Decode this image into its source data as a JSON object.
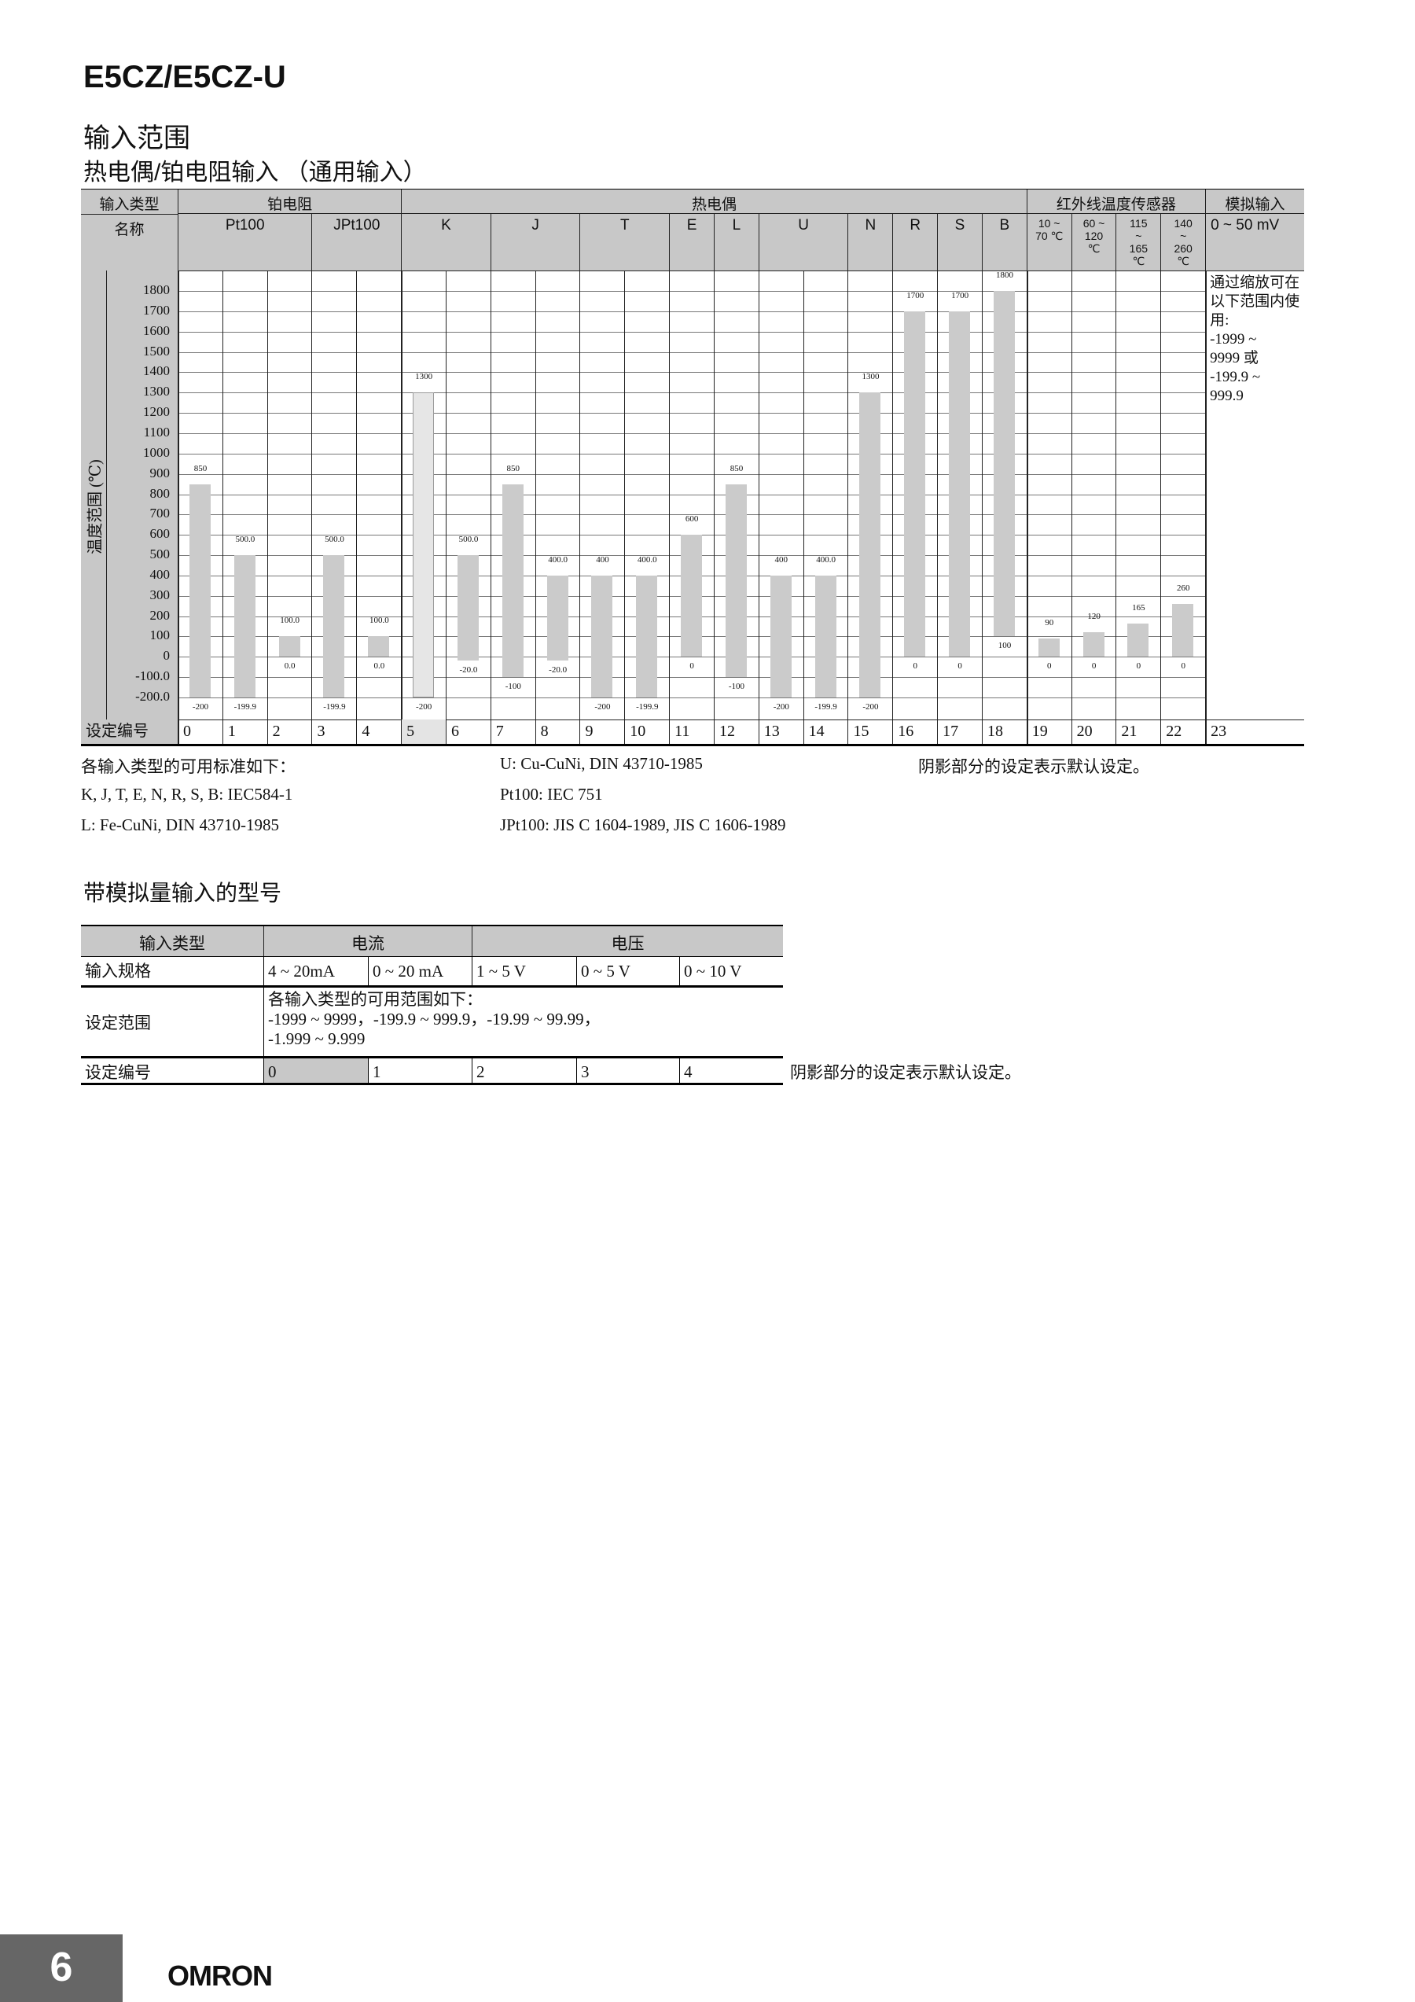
{
  "header": {
    "model": "E5CZ/E5CZ-U",
    "section": "输入范围",
    "subsection": "热电偶/铂电阻输入 （通用输入）"
  },
  "table1": {
    "row1_label": "输入类型",
    "row2_label": "名称",
    "groups": [
      "铂电阻",
      "热电偶",
      "红外线温度传感器",
      "模拟输入"
    ],
    "names": [
      "Pt100",
      "JPt100",
      "K",
      "J",
      "T",
      "E",
      "L",
      "U",
      "N",
      "R",
      "S",
      "B",
      "10 ~\n70 ℃",
      "60 ~\n120\n℃",
      "115\n~\n165\n℃",
      "140\n~\n260\n℃",
      "0 ~ 50 mV"
    ],
    "axis_label": "温度范围 (℃)",
    "setting_label": "设定编号",
    "analog_note": "通过缩放可在以下范围内使用:\n-1999 ~\n9999 或\n-199.9 ~\n999.9",
    "default_setting": 5,
    "shade_color": "#cbcbcb",
    "default_shade_color": "#e6e6e6"
  },
  "chart_data": {
    "type": "bar",
    "subtype": "floating-range",
    "ylabel": "温度范围 (℃)",
    "ylim": [
      -200,
      1800
    ],
    "yticks": [
      "1800",
      "1700",
      "1600",
      "1500",
      "1400",
      "1300",
      "1200",
      "1100",
      "1000",
      "900",
      "800",
      "700",
      "600",
      "500",
      "400",
      "300",
      "200",
      "100",
      "0",
      "-100.0",
      "-200.0"
    ],
    "grid": true,
    "categories": [
      "0",
      "1",
      "2",
      "3",
      "4",
      "5",
      "6",
      "7",
      "8",
      "9",
      "10",
      "11",
      "12",
      "13",
      "14",
      "15",
      "16",
      "17",
      "18",
      "19",
      "20",
      "21",
      "22",
      "23"
    ],
    "ranges": [
      {
        "max": 850,
        "min": -200,
        "max_label": "850",
        "min_label": "-200"
      },
      {
        "max": 500,
        "min": -199.9,
        "max_label": "500.0",
        "min_label": "-199.9"
      },
      {
        "max": 100,
        "min": 0,
        "max_label": "100.0",
        "min_label": "0.0"
      },
      {
        "max": 500,
        "min": -199.9,
        "max_label": "500.0",
        "min_label": "-199.9"
      },
      {
        "max": 100,
        "min": 0,
        "max_label": "100.0",
        "min_label": "0.0"
      },
      {
        "max": 1300,
        "min": -200,
        "max_label": "1300",
        "min_label": "-200"
      },
      {
        "max": 500,
        "min": -20,
        "max_label": "500.0",
        "min_label": "-20.0"
      },
      {
        "max": 850,
        "min": -100,
        "max_label": "850",
        "min_label": "-100"
      },
      {
        "max": 400,
        "min": -20,
        "max_label": "400.0",
        "min_label": "-20.0"
      },
      {
        "max": 400,
        "min": -200,
        "max_label": "400",
        "min_label": "-200"
      },
      {
        "max": 400,
        "min": -199.9,
        "max_label": "400.0",
        "min_label": "-199.9"
      },
      {
        "max": 600,
        "min": 0,
        "max_label": "600",
        "min_label": "0"
      },
      {
        "max": 850,
        "min": -100,
        "max_label": "850",
        "min_label": "-100"
      },
      {
        "max": 400,
        "min": -200,
        "max_label": "400",
        "min_label": "-200"
      },
      {
        "max": 400,
        "min": -199.9,
        "max_label": "400.0",
        "min_label": "-199.9"
      },
      {
        "max": 1300,
        "min": -200,
        "max_label": "1300",
        "min_label": "-200"
      },
      {
        "max": 1700,
        "min": 0,
        "max_label": "1700",
        "min_label": "0"
      },
      {
        "max": 1700,
        "min": 0,
        "max_label": "1700",
        "min_label": "0"
      },
      {
        "max": 1800,
        "min": 100,
        "max_label": "1800",
        "min_label": "100"
      },
      {
        "max": 90,
        "min": 0,
        "max_label": "90",
        "min_label": "0"
      },
      {
        "max": 120,
        "min": 0,
        "max_label": "120",
        "min_label": "0"
      },
      {
        "max": 165,
        "min": 0,
        "max_label": "165",
        "min_label": "0"
      },
      {
        "max": 260,
        "min": 0,
        "max_label": "260",
        "min_label": "0"
      }
    ]
  },
  "notes": {
    "standards_title": "各输入类型的可用标准如下：",
    "std1": "K, J, T, E, N, R, S, B: IEC584-1",
    "std2": "L: Fe-CuNi, DIN 43710-1985",
    "std3": "U: Cu-CuNi, DIN 43710-1985",
    "std4": "Pt100: IEC 751",
    "std5": "JPt100: JIS C 1604-1989, JIS C 1606-1989",
    "shade_note": "阴影部分的设定表示默认设定。"
  },
  "analog": {
    "heading": "带模拟量输入的型号",
    "type_label": "输入类型",
    "current": "电流",
    "voltage": "电压",
    "spec_label": "输入规格",
    "specs": [
      "4 ~ 20mA",
      "0 ~ 20 mA",
      "1 ~ 5 V",
      "0 ~ 5 V",
      "0 ~ 10 V"
    ],
    "range_label": "设定范围",
    "range_text": "各输入类型的可用范围如下：\n-1999 ~ 9999，-199.9 ~ 999.9，-19.99 ~ 99.99，\n-1.999 ~ 9.999",
    "setting_label": "设定编号",
    "settings": [
      "0",
      "1",
      "2",
      "3",
      "4"
    ],
    "default_setting": 0,
    "shade_note": "阴影部分的设定表示默认设定。"
  },
  "footer": {
    "page_number": "6",
    "brand": "OMRON",
    "page_box_color": "#666666"
  }
}
